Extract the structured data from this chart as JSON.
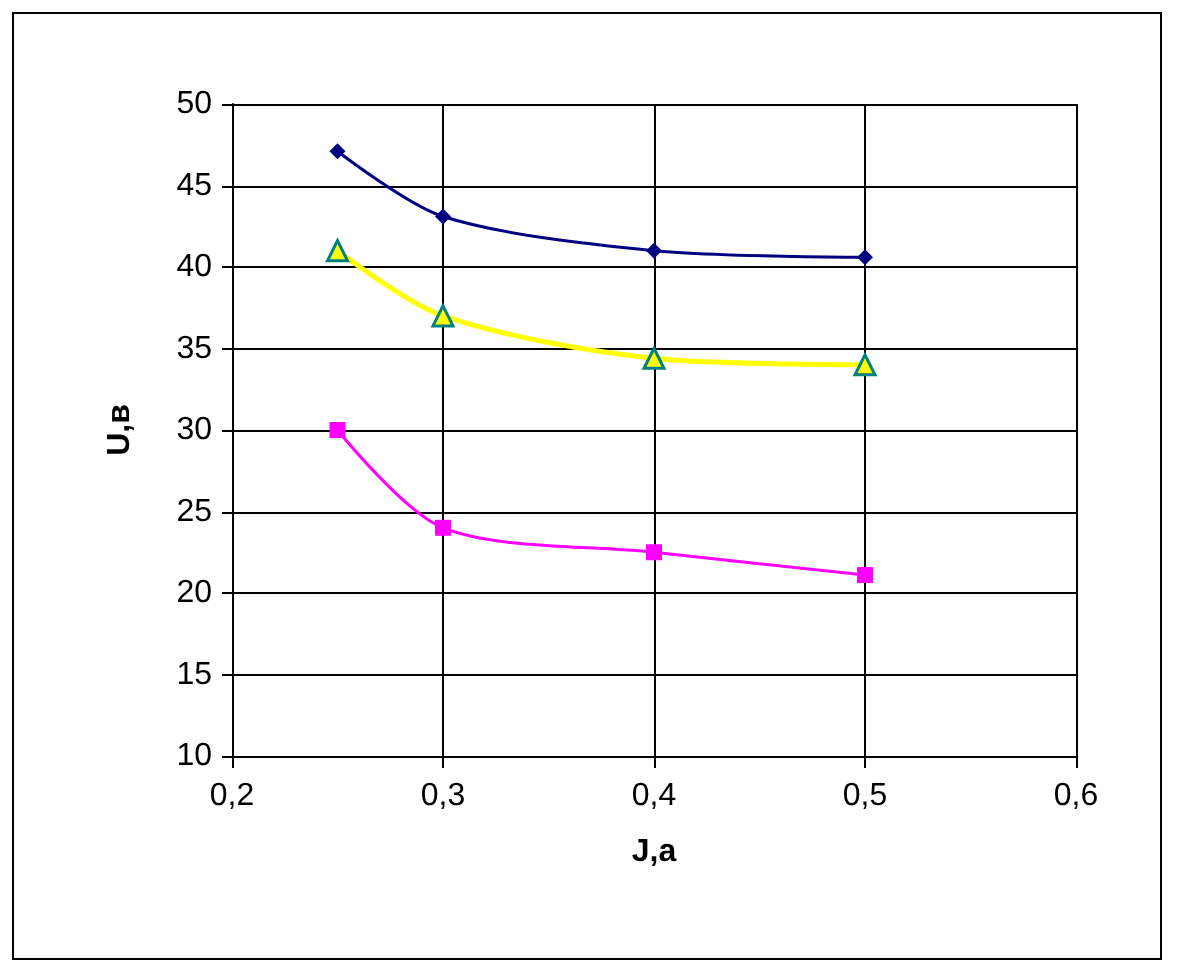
{
  "chart_data": {
    "type": "line",
    "xlabel": "J,a",
    "ylabel": "U,в",
    "xlim": [
      0.2,
      0.6
    ],
    "xticks": [
      {
        "value": 0.2,
        "label": "0,2"
      },
      {
        "value": 0.3,
        "label": "0,3"
      },
      {
        "value": 0.4,
        "label": "0,4"
      },
      {
        "value": 0.5,
        "label": "0,5"
      },
      {
        "value": 0.6,
        "label": "0,6"
      }
    ],
    "ylim": [
      10,
      50
    ],
    "yticks": [
      10,
      15,
      20,
      25,
      30,
      35,
      40,
      45,
      50
    ],
    "grid": true,
    "x": [
      0.25,
      0.3,
      0.4,
      0.5
    ],
    "series": [
      {
        "color": "#000080",
        "marker": "diamond",
        "values": [
          47.1,
          43.1,
          41.0,
          40.6
        ]
      },
      {
        "color": "#ffff00",
        "marker": "triangle",
        "values": [
          41.0,
          37.0,
          34.4,
          34.0
        ]
      },
      {
        "color": "#ff00ff",
        "marker": "square",
        "values": [
          30.0,
          24.0,
          22.5,
          21.1
        ]
      }
    ]
  }
}
